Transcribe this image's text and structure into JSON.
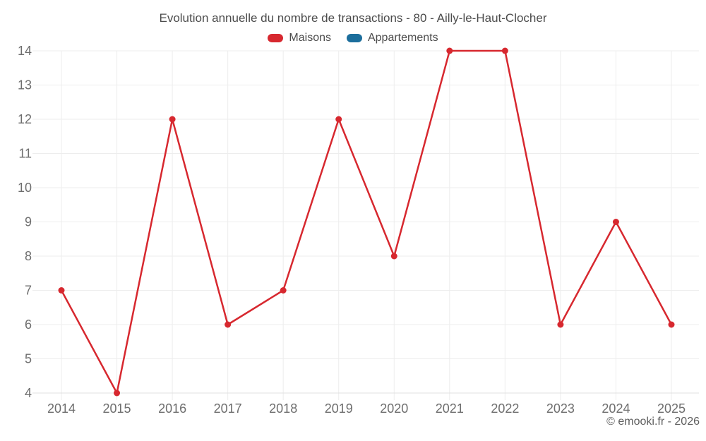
{
  "header": {
    "title": "Evolution annuelle du nombre de transactions - 80 - Ailly-le-Haut-Clocher"
  },
  "legend": {
    "items": [
      {
        "label": "Maisons",
        "color": "#d7282f"
      },
      {
        "label": "Appartements",
        "color": "#1c6e9c"
      }
    ]
  },
  "chart_data": {
    "type": "line",
    "title": "Evolution annuelle du nombre de transactions - 80 - Ailly-le-Haut-Clocher",
    "categories": [
      "2014",
      "2015",
      "2016",
      "2017",
      "2018",
      "2019",
      "2020",
      "2021",
      "2022",
      "2023",
      "2024",
      "2025"
    ],
    "series": [
      {
        "name": "Maisons",
        "color": "#d7282f",
        "values": [
          7,
          4,
          12,
          6,
          7,
          12,
          8,
          14,
          14,
          6,
          9,
          6
        ]
      },
      {
        "name": "Appartements",
        "color": "#1c6e9c",
        "values": []
      }
    ],
    "xlabel": "",
    "ylabel": "",
    "ylim": [
      4,
      14
    ],
    "yticks": [
      4,
      5,
      6,
      7,
      8,
      9,
      10,
      11,
      12,
      13,
      14
    ],
    "grid": true,
    "legend_position": "top",
    "colors": {
      "grid": "#ededed",
      "axis": "#e0e0e0",
      "tick_text": "#6e6e6e"
    }
  },
  "footer": {
    "attribution": "© emooki.fr - 2026"
  }
}
